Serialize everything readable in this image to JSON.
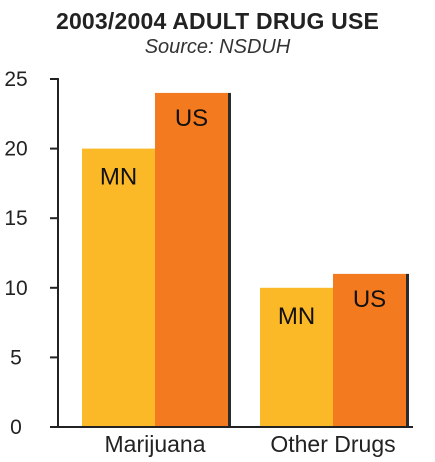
{
  "chart_data": {
    "type": "bar",
    "title": "2003/2004 ADULT DRUG USE",
    "subtitle": "Source: NSDUH",
    "categories": [
      "Marijuana",
      "Other Drugs"
    ],
    "series": [
      {
        "name": "MN",
        "values": [
          20,
          10
        ],
        "color": "#FBB928"
      },
      {
        "name": "US",
        "values": [
          24,
          11
        ],
        "color": "#F47A20"
      }
    ],
    "yticks": [
      0,
      5,
      10,
      15,
      20,
      25
    ],
    "ylim": [
      0,
      25
    ],
    "legend": "none",
    "grid": false
  }
}
